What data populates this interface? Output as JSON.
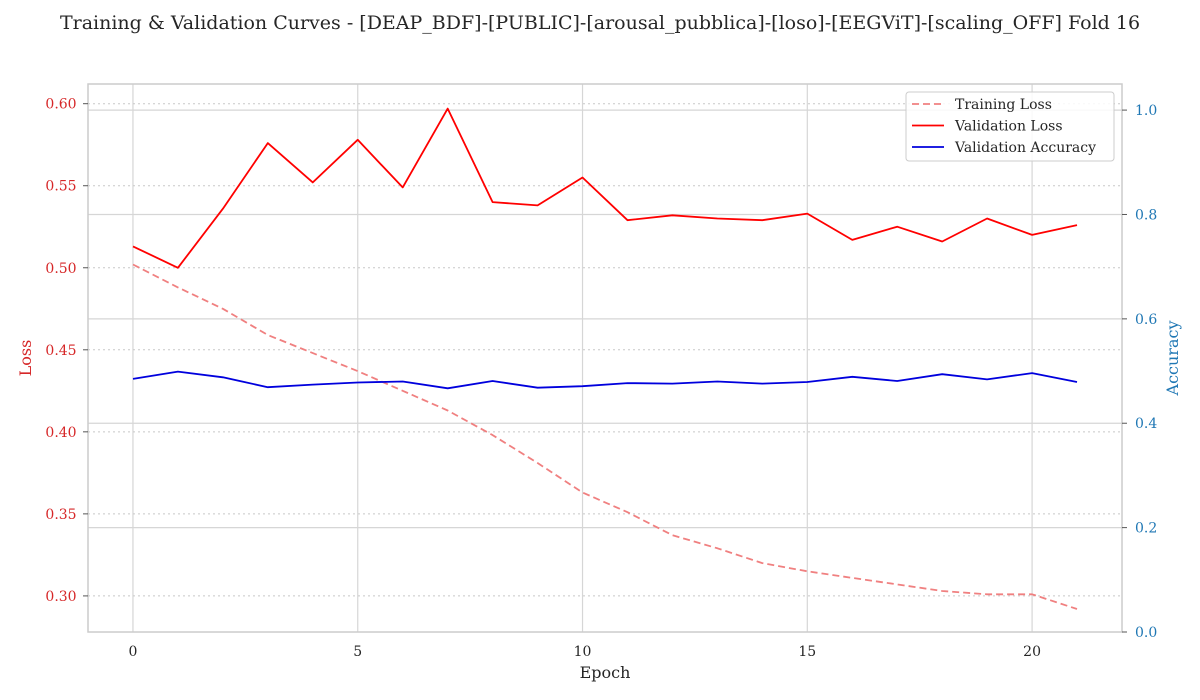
{
  "chart_data": {
    "type": "line",
    "title": "Training & Validation Curves - [DEAP_BDF]-[PUBLIC]-[arousal_pubblica]-[loso]-[EEGViT]-[scaling_OFF] Fold 16",
    "xlabel": "Epoch",
    "ylabel_left": "Loss",
    "ylabel_right": "Accuracy",
    "xlim": [
      -1,
      22
    ],
    "ylim_left": [
      0.278,
      0.612
    ],
    "ylim_right": [
      0.0,
      1.05
    ],
    "x_ticks": [
      0,
      5,
      10,
      15,
      20
    ],
    "y_ticks_left": [
      0.3,
      0.35,
      0.4,
      0.45,
      0.5,
      0.55,
      0.6
    ],
    "y_ticks_right": [
      0.0,
      0.2,
      0.4,
      0.6,
      0.8,
      1.0
    ],
    "grid": true,
    "legend_position": "top-right",
    "x": [
      0,
      1,
      2,
      3,
      4,
      5,
      6,
      7,
      8,
      9,
      10,
      11,
      12,
      13,
      14,
      15,
      16,
      17,
      18,
      19,
      20,
      21
    ],
    "series": [
      {
        "name": "Training Loss",
        "axis": "left",
        "color": "#f08080",
        "style": "dashed",
        "values": [
          0.502,
          0.488,
          0.475,
          0.459,
          0.448,
          0.437,
          0.425,
          0.413,
          0.398,
          0.381,
          0.363,
          0.351,
          0.337,
          0.329,
          0.32,
          0.315,
          0.311,
          0.307,
          0.303,
          0.301,
          0.301,
          0.292
        ]
      },
      {
        "name": "Validation Loss",
        "axis": "left",
        "color": "#ff0000",
        "style": "solid",
        "values": [
          0.513,
          0.5,
          0.536,
          0.576,
          0.552,
          0.578,
          0.549,
          0.597,
          0.54,
          0.538,
          0.555,
          0.529,
          0.532,
          0.53,
          0.529,
          0.533,
          0.517,
          0.525,
          0.516,
          0.53,
          0.52,
          0.526
        ]
      },
      {
        "name": "Validation Accuracy",
        "axis": "right",
        "color": "#0000dd",
        "style": "solid",
        "values": [
          0.485,
          0.499,
          0.488,
          0.469,
          0.474,
          0.478,
          0.48,
          0.467,
          0.481,
          0.468,
          0.471,
          0.477,
          0.476,
          0.48,
          0.476,
          0.479,
          0.489,
          0.481,
          0.494,
          0.484,
          0.496,
          0.479
        ]
      }
    ]
  }
}
